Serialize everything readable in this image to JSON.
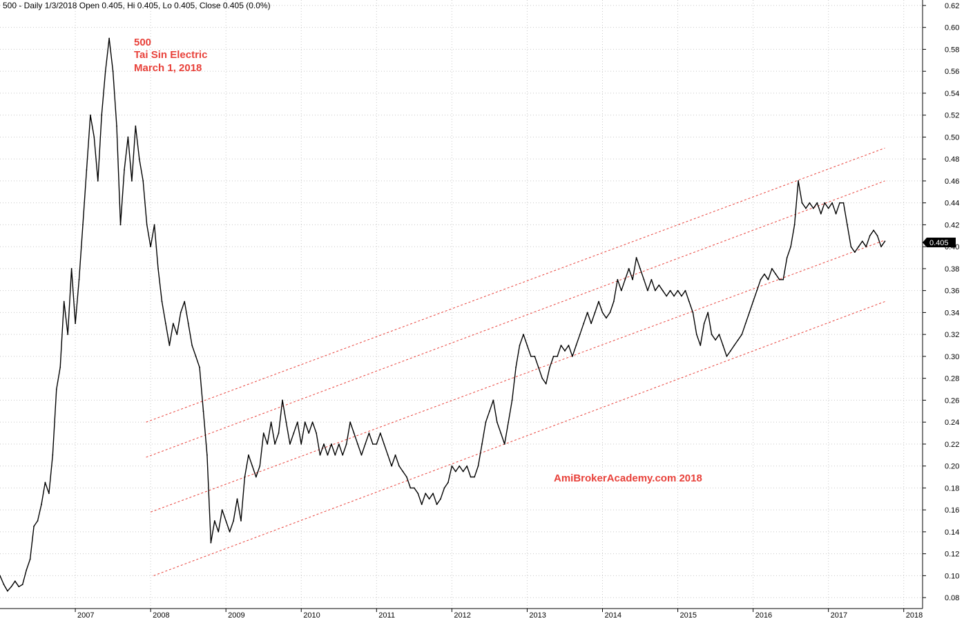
{
  "header": {
    "text": "500 - Daily 1/3/2018 Open 0.405, Hi 0.405, Lo 0.405, Close 0.405 (0.0%)"
  },
  "annotations": {
    "ticker": "500",
    "name": "Tai Sin Electric",
    "date": "March 1, 2018",
    "watermark": "AmiBrokerAcademy.com  2018"
  },
  "last_price_label": "0.405",
  "colors": {
    "price": "#000000",
    "channel": "#e8413a",
    "grid": "#c8c8c8",
    "label_bg": "#000000"
  },
  "chart_data": {
    "type": "line",
    "x_unit": "year",
    "xlim": [
      2006.0,
      2018.25
    ],
    "ylim": [
      0.07,
      0.625
    ],
    "y_ticks": [
      0.08,
      0.1,
      0.12,
      0.14,
      0.16,
      0.18,
      0.2,
      0.22,
      0.24,
      0.26,
      0.28,
      0.3,
      0.32,
      0.34,
      0.36,
      0.38,
      0.4,
      0.42,
      0.44,
      0.46,
      0.48,
      0.5,
      0.52,
      0.54,
      0.56,
      0.58,
      0.6,
      0.62
    ],
    "y_tick_labels": [
      "0.08",
      "0.10",
      "0.12",
      "0.14",
      "0.16",
      "0.18",
      "0.20",
      "0.22",
      "0.24",
      "0.26",
      "0.28",
      "0.30",
      "0.32",
      "0.34",
      "0.36",
      "0.38",
      "0.40",
      "0.42",
      "0.44",
      "0.46",
      "0.48",
      "0.50",
      "0.52",
      "0.54",
      "0.56",
      "0.58",
      "0.60",
      "0.62"
    ],
    "x_ticks": [
      2007,
      2008,
      2009,
      2010,
      2011,
      2012,
      2013,
      2014,
      2015,
      2016,
      2017,
      2018
    ],
    "x_tick_labels": [
      "2007",
      "2008",
      "2009",
      "2010",
      "2011",
      "2012",
      "2013",
      "2014",
      "2015",
      "2016",
      "2017",
      "2018"
    ],
    "grid": true,
    "series": [
      {
        "points": [
          [
            2006.0,
            0.1
          ],
          [
            2006.05,
            0.092
          ],
          [
            2006.1,
            0.086
          ],
          [
            2006.15,
            0.09
          ],
          [
            2006.2,
            0.095
          ],
          [
            2006.25,
            0.09
          ],
          [
            2006.3,
            0.092
          ],
          [
            2006.35,
            0.105
          ],
          [
            2006.4,
            0.115
          ],
          [
            2006.45,
            0.145
          ],
          [
            2006.5,
            0.15
          ],
          [
            2006.55,
            0.165
          ],
          [
            2006.6,
            0.185
          ],
          [
            2006.65,
            0.175
          ],
          [
            2006.7,
            0.21
          ],
          [
            2006.75,
            0.27
          ],
          [
            2006.8,
            0.29
          ],
          [
            2006.85,
            0.35
          ],
          [
            2006.9,
            0.32
          ],
          [
            2006.95,
            0.38
          ],
          [
            2007.0,
            0.33
          ],
          [
            2007.05,
            0.37
          ],
          [
            2007.1,
            0.42
          ],
          [
            2007.15,
            0.47
          ],
          [
            2007.2,
            0.52
          ],
          [
            2007.25,
            0.5
          ],
          [
            2007.3,
            0.46
          ],
          [
            2007.35,
            0.52
          ],
          [
            2007.4,
            0.56
          ],
          [
            2007.45,
            0.59
          ],
          [
            2007.5,
            0.56
          ],
          [
            2007.55,
            0.51
          ],
          [
            2007.6,
            0.42
          ],
          [
            2007.65,
            0.47
          ],
          [
            2007.7,
            0.5
          ],
          [
            2007.75,
            0.46
          ],
          [
            2007.8,
            0.51
          ],
          [
            2007.85,
            0.48
          ],
          [
            2007.9,
            0.46
          ],
          [
            2007.95,
            0.42
          ],
          [
            2008.0,
            0.4
          ],
          [
            2008.05,
            0.42
          ],
          [
            2008.1,
            0.38
          ],
          [
            2008.15,
            0.35
          ],
          [
            2008.2,
            0.33
          ],
          [
            2008.25,
            0.31
          ],
          [
            2008.3,
            0.33
          ],
          [
            2008.35,
            0.32
          ],
          [
            2008.4,
            0.34
          ],
          [
            2008.45,
            0.35
          ],
          [
            2008.5,
            0.33
          ],
          [
            2008.55,
            0.31
          ],
          [
            2008.6,
            0.3
          ],
          [
            2008.65,
            0.29
          ],
          [
            2008.7,
            0.25
          ],
          [
            2008.75,
            0.21
          ],
          [
            2008.8,
            0.13
          ],
          [
            2008.85,
            0.15
          ],
          [
            2008.9,
            0.14
          ],
          [
            2008.95,
            0.16
          ],
          [
            2009.0,
            0.15
          ],
          [
            2009.05,
            0.14
          ],
          [
            2009.1,
            0.15
          ],
          [
            2009.15,
            0.17
          ],
          [
            2009.2,
            0.15
          ],
          [
            2009.25,
            0.19
          ],
          [
            2009.3,
            0.21
          ],
          [
            2009.35,
            0.2
          ],
          [
            2009.4,
            0.19
          ],
          [
            2009.45,
            0.2
          ],
          [
            2009.5,
            0.23
          ],
          [
            2009.55,
            0.22
          ],
          [
            2009.6,
            0.24
          ],
          [
            2009.65,
            0.22
          ],
          [
            2009.7,
            0.23
          ],
          [
            2009.75,
            0.26
          ],
          [
            2009.8,
            0.24
          ],
          [
            2009.85,
            0.22
          ],
          [
            2009.9,
            0.23
          ],
          [
            2009.95,
            0.24
          ],
          [
            2010.0,
            0.22
          ],
          [
            2010.05,
            0.24
          ],
          [
            2010.1,
            0.23
          ],
          [
            2010.15,
            0.24
          ],
          [
            2010.2,
            0.23
          ],
          [
            2010.25,
            0.21
          ],
          [
            2010.3,
            0.22
          ],
          [
            2010.35,
            0.21
          ],
          [
            2010.4,
            0.22
          ],
          [
            2010.45,
            0.21
          ],
          [
            2010.5,
            0.22
          ],
          [
            2010.55,
            0.21
          ],
          [
            2010.6,
            0.22
          ],
          [
            2010.65,
            0.24
          ],
          [
            2010.7,
            0.23
          ],
          [
            2010.75,
            0.22
          ],
          [
            2010.8,
            0.21
          ],
          [
            2010.85,
            0.22
          ],
          [
            2010.9,
            0.23
          ],
          [
            2010.95,
            0.22
          ],
          [
            2011.0,
            0.22
          ],
          [
            2011.05,
            0.23
          ],
          [
            2011.1,
            0.22
          ],
          [
            2011.15,
            0.21
          ],
          [
            2011.2,
            0.2
          ],
          [
            2011.25,
            0.21
          ],
          [
            2011.3,
            0.2
          ],
          [
            2011.35,
            0.195
          ],
          [
            2011.4,
            0.19
          ],
          [
            2011.45,
            0.18
          ],
          [
            2011.5,
            0.18
          ],
          [
            2011.55,
            0.175
          ],
          [
            2011.6,
            0.165
          ],
          [
            2011.65,
            0.175
          ],
          [
            2011.7,
            0.17
          ],
          [
            2011.75,
            0.175
          ],
          [
            2011.8,
            0.165
          ],
          [
            2011.85,
            0.17
          ],
          [
            2011.9,
            0.18
          ],
          [
            2011.95,
            0.185
          ],
          [
            2012.0,
            0.2
          ],
          [
            2012.05,
            0.195
          ],
          [
            2012.1,
            0.2
          ],
          [
            2012.15,
            0.195
          ],
          [
            2012.2,
            0.2
          ],
          [
            2012.25,
            0.19
          ],
          [
            2012.3,
            0.19
          ],
          [
            2012.35,
            0.2
          ],
          [
            2012.4,
            0.22
          ],
          [
            2012.45,
            0.24
          ],
          [
            2012.5,
            0.25
          ],
          [
            2012.55,
            0.26
          ],
          [
            2012.6,
            0.24
          ],
          [
            2012.65,
            0.23
          ],
          [
            2012.7,
            0.22
          ],
          [
            2012.75,
            0.24
          ],
          [
            2012.8,
            0.26
          ],
          [
            2012.85,
            0.29
          ],
          [
            2012.9,
            0.31
          ],
          [
            2012.95,
            0.32
          ],
          [
            2013.0,
            0.31
          ],
          [
            2013.05,
            0.3
          ],
          [
            2013.1,
            0.3
          ],
          [
            2013.15,
            0.29
          ],
          [
            2013.2,
            0.28
          ],
          [
            2013.25,
            0.275
          ],
          [
            2013.3,
            0.29
          ],
          [
            2013.35,
            0.3
          ],
          [
            2013.4,
            0.3
          ],
          [
            2013.45,
            0.31
          ],
          [
            2013.5,
            0.305
          ],
          [
            2013.55,
            0.31
          ],
          [
            2013.6,
            0.3
          ],
          [
            2013.65,
            0.31
          ],
          [
            2013.7,
            0.32
          ],
          [
            2013.75,
            0.33
          ],
          [
            2013.8,
            0.34
          ],
          [
            2013.85,
            0.33
          ],
          [
            2013.9,
            0.34
          ],
          [
            2013.95,
            0.35
          ],
          [
            2014.0,
            0.34
          ],
          [
            2014.05,
            0.335
          ],
          [
            2014.1,
            0.34
          ],
          [
            2014.15,
            0.35
          ],
          [
            2014.2,
            0.37
          ],
          [
            2014.25,
            0.36
          ],
          [
            2014.3,
            0.37
          ],
          [
            2014.35,
            0.38
          ],
          [
            2014.4,
            0.37
          ],
          [
            2014.45,
            0.39
          ],
          [
            2014.5,
            0.38
          ],
          [
            2014.55,
            0.37
          ],
          [
            2014.6,
            0.36
          ],
          [
            2014.65,
            0.37
          ],
          [
            2014.7,
            0.36
          ],
          [
            2014.75,
            0.365
          ],
          [
            2014.8,
            0.36
          ],
          [
            2014.85,
            0.355
          ],
          [
            2014.9,
            0.36
          ],
          [
            2014.95,
            0.355
          ],
          [
            2015.0,
            0.36
          ],
          [
            2015.05,
            0.355
          ],
          [
            2015.1,
            0.36
          ],
          [
            2015.15,
            0.35
          ],
          [
            2015.2,
            0.34
          ],
          [
            2015.25,
            0.32
          ],
          [
            2015.3,
            0.31
          ],
          [
            2015.35,
            0.33
          ],
          [
            2015.4,
            0.34
          ],
          [
            2015.45,
            0.32
          ],
          [
            2015.5,
            0.315
          ],
          [
            2015.55,
            0.32
          ],
          [
            2015.6,
            0.31
          ],
          [
            2015.65,
            0.3
          ],
          [
            2015.7,
            0.305
          ],
          [
            2015.75,
            0.31
          ],
          [
            2015.8,
            0.315
          ],
          [
            2015.85,
            0.32
          ],
          [
            2015.9,
            0.33
          ],
          [
            2015.95,
            0.34
          ],
          [
            2016.0,
            0.35
          ],
          [
            2016.05,
            0.36
          ],
          [
            2016.1,
            0.37
          ],
          [
            2016.15,
            0.375
          ],
          [
            2016.2,
            0.37
          ],
          [
            2016.25,
            0.38
          ],
          [
            2016.3,
            0.375
          ],
          [
            2016.35,
            0.37
          ],
          [
            2016.4,
            0.37
          ],
          [
            2016.45,
            0.39
          ],
          [
            2016.5,
            0.4
          ],
          [
            2016.55,
            0.42
          ],
          [
            2016.6,
            0.46
          ],
          [
            2016.65,
            0.44
          ],
          [
            2016.7,
            0.435
          ],
          [
            2016.75,
            0.44
          ],
          [
            2016.8,
            0.435
          ],
          [
            2016.85,
            0.44
          ],
          [
            2016.9,
            0.43
          ],
          [
            2016.95,
            0.44
          ],
          [
            2017.0,
            0.435
          ],
          [
            2017.05,
            0.44
          ],
          [
            2017.1,
            0.43
          ],
          [
            2017.15,
            0.44
          ],
          [
            2017.2,
            0.44
          ],
          [
            2017.25,
            0.42
          ],
          [
            2017.3,
            0.4
          ],
          [
            2017.35,
            0.395
          ],
          [
            2017.4,
            0.4
          ],
          [
            2017.45,
            0.405
          ],
          [
            2017.5,
            0.4
          ],
          [
            2017.55,
            0.41
          ],
          [
            2017.6,
            0.415
          ],
          [
            2017.65,
            0.41
          ],
          [
            2017.7,
            0.4
          ],
          [
            2017.75,
            0.405
          ]
        ]
      },
      {
        "style": "dashed-channel",
        "lines": [
          [
            [
              2007.94,
              0.24
            ],
            [
              2017.75,
              0.49
            ]
          ],
          [
            [
              2007.94,
              0.208
            ],
            [
              2017.75,
              0.46
            ]
          ],
          [
            [
              2008.0,
              0.158
            ],
            [
              2017.75,
              0.406
            ]
          ],
          [
            [
              2008.04,
              0.1
            ],
            [
              2017.75,
              0.35
            ]
          ]
        ]
      }
    ]
  }
}
